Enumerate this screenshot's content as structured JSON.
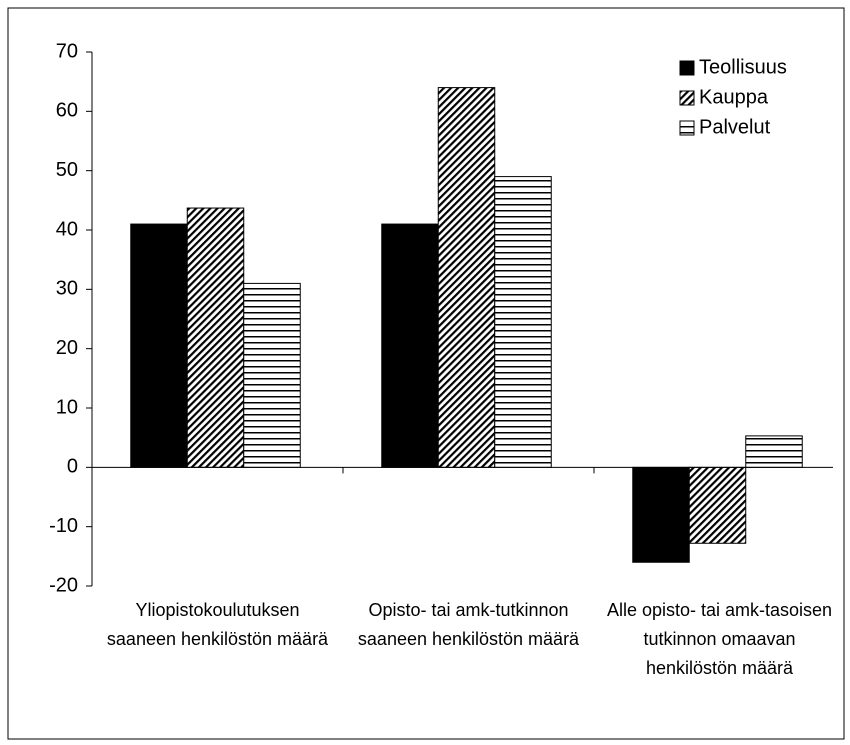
{
  "chart_data": {
    "type": "bar",
    "categories": [
      "Yliopistokoulutuksen saaneen henkilöstön määrä",
      "Opisto- tai amk-tutkinnon saaneen henkilöstön määrä",
      "Alle opisto- tai amk-tasoisen tutkinnon omaavan henkilöstön määrä"
    ],
    "series": [
      {
        "name": "Teollisuus",
        "color": "#000000",
        "pattern": "solid",
        "values": [
          41,
          41,
          -16
        ]
      },
      {
        "name": "Kauppa",
        "color": "#000000",
        "pattern": "diagonal",
        "values": [
          43.7,
          64,
          -12.8
        ]
      },
      {
        "name": "Palvelut",
        "color": "#000000",
        "pattern": "horizontal",
        "values": [
          31,
          49,
          5.3
        ]
      }
    ],
    "ylim": [
      -20,
      70
    ],
    "yticks": [
      -20,
      -10,
      0,
      10,
      20,
      30,
      40,
      50,
      60,
      70
    ],
    "grid": false,
    "legend": "top-right"
  }
}
